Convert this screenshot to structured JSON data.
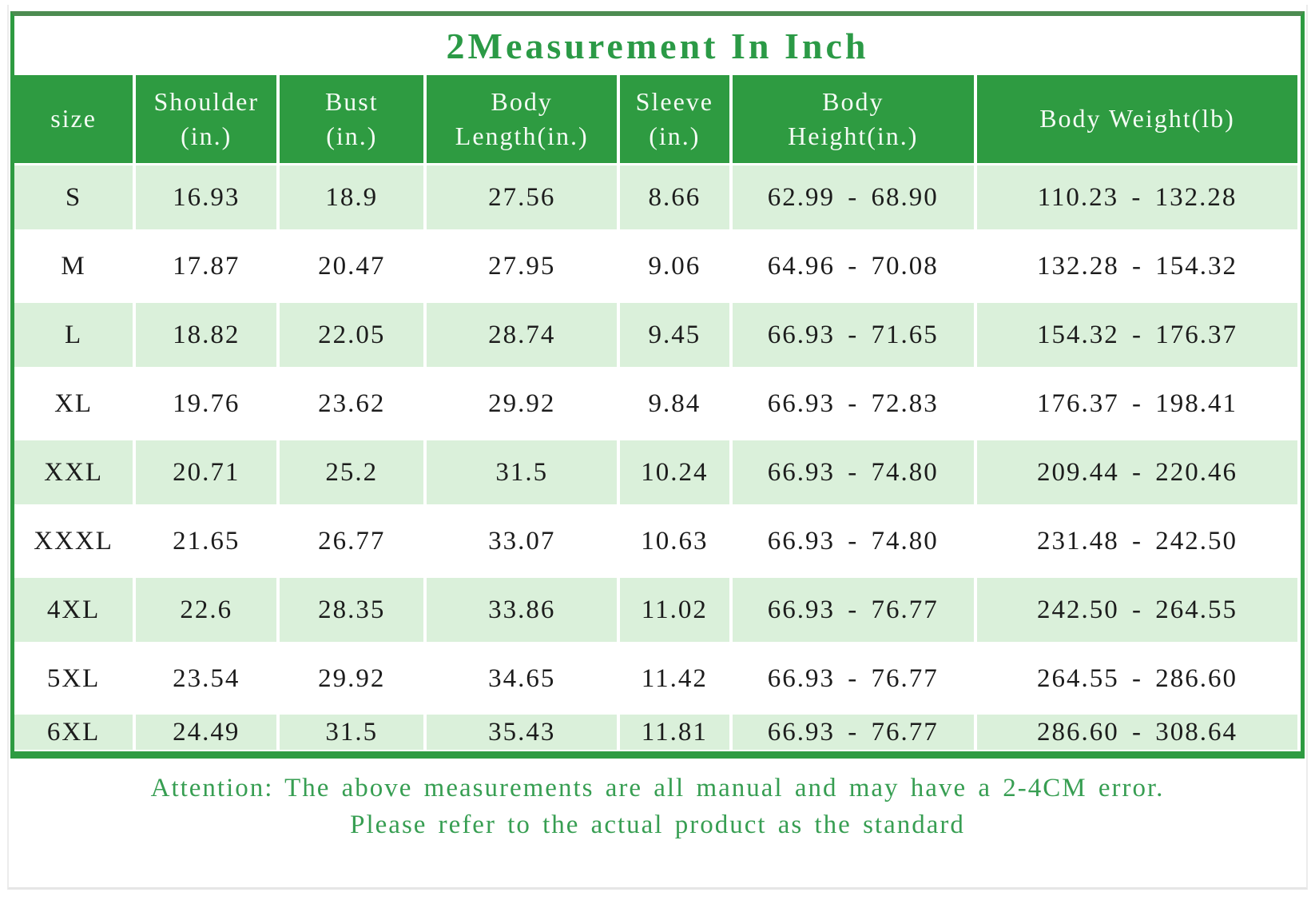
{
  "page": {
    "title": "2Measurement In Inch",
    "note_line1": "Attention: The above measurements are all manual and may have a 2-4CM error.",
    "note_line2": "Please refer to the actual product as the standard"
  },
  "table": {
    "columns": [
      {
        "key": "size",
        "label_line1": "size",
        "label_line2": "",
        "width": 9.45
      },
      {
        "key": "shoulder",
        "label_line1": "Shoulder",
        "label_line2": "(in.)",
        "width": 11.19
      },
      {
        "key": "bust",
        "label_line1": "Bust",
        "label_line2": "(in.)",
        "width": 11.43
      },
      {
        "key": "body-length",
        "label_line1": "Body",
        "label_line2": "Length(in.)",
        "width": 15.02
      },
      {
        "key": "sleeve",
        "label_line1": "Sleeve",
        "label_line2": "(in.)",
        "width": 8.72
      },
      {
        "key": "body-height",
        "label_line1": "Body",
        "label_line2": "Height(in.)",
        "width": 19.04
      },
      {
        "key": "body-weight",
        "label_line1": "Body Weight(lb)",
        "label_line2": "",
        "width": 25.15
      }
    ],
    "rows": [
      [
        "S",
        "16.93",
        "18.9",
        "27.56",
        "8.66",
        "62.99 - 68.90",
        "110.23 - 132.28"
      ],
      [
        "M",
        "17.87",
        "20.47",
        "27.95",
        "9.06",
        "64.96 - 70.08",
        "132.28 - 154.32"
      ],
      [
        "L",
        "18.82",
        "22.05",
        "28.74",
        "9.45",
        "66.93 - 71.65",
        "154.32 - 176.37"
      ],
      [
        "XL",
        "19.76",
        "23.62",
        "29.92",
        "9.84",
        "66.93 - 72.83",
        "176.37 - 198.41"
      ],
      [
        "XXL",
        "20.71",
        "25.2",
        "31.5",
        "10.24",
        "66.93 - 74.80",
        "209.44 - 220.46"
      ],
      [
        "XXXL",
        "21.65",
        "26.77",
        "33.07",
        "10.63",
        "66.93 - 74.80",
        "231.48 - 242.50"
      ],
      [
        "4XL",
        "22.6",
        "28.35",
        "33.86",
        "11.02",
        "66.93 - 76.77",
        "242.50 - 264.55"
      ],
      [
        "5XL",
        "23.54",
        "29.92",
        "34.65",
        "11.42",
        "66.93 - 76.77",
        "264.55 - 286.60"
      ],
      [
        "6XL",
        "24.49",
        "31.5",
        "35.43",
        "11.81",
        "66.93 - 76.77",
        "286.60 - 308.64"
      ]
    ]
  },
  "colors": {
    "header_bg": "#2e9b41",
    "row_alt_bg": "#daf0da",
    "title_text": "#2b9a46",
    "note_text": "#379e52",
    "frame_top": "#4d8c51",
    "frame_green": "#2e9b41",
    "text": "#1c1c1c"
  }
}
